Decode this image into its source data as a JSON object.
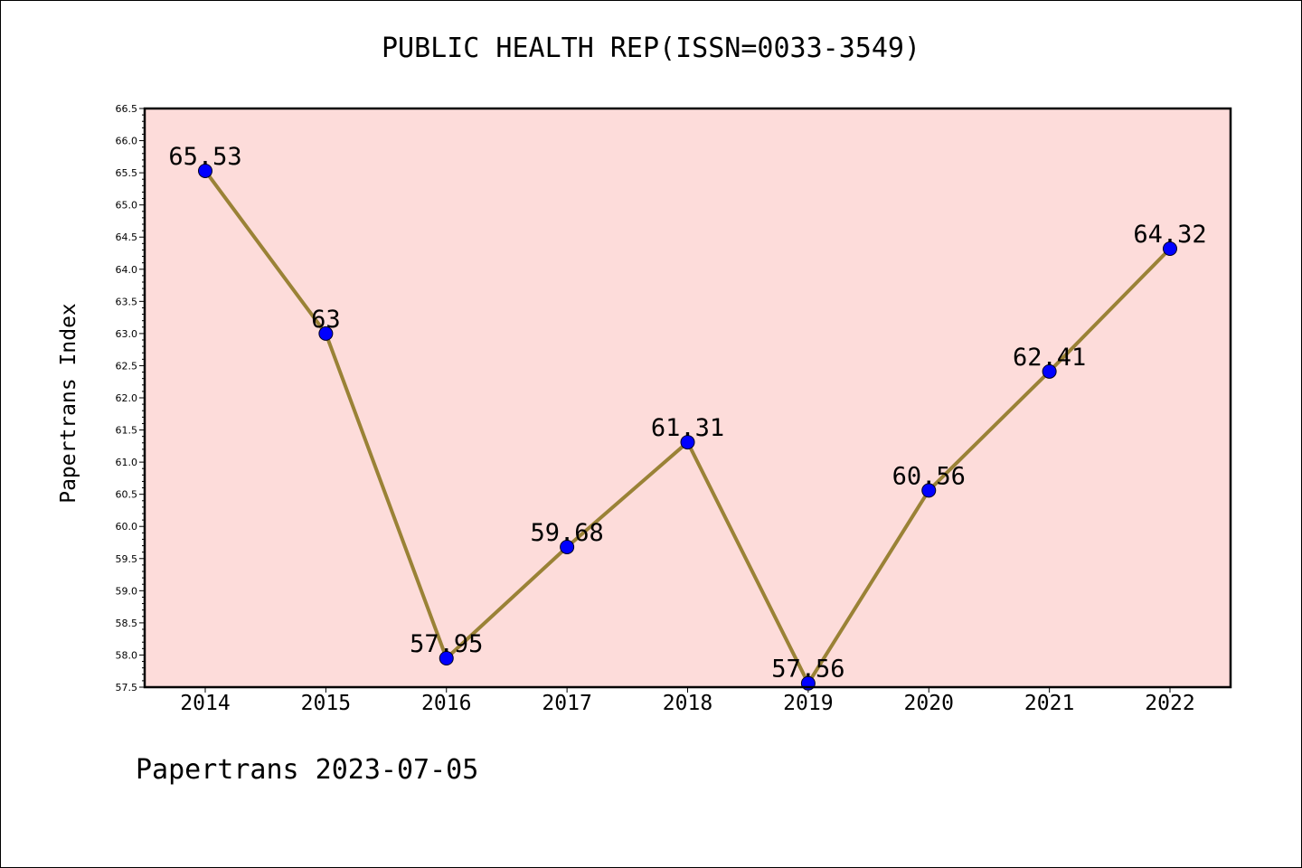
{
  "chart_data": {
    "type": "line",
    "title": "PUBLIC HEALTH REP(ISSN=0033-3549)",
    "xlabel": "",
    "ylabel": "Papertrans Index",
    "categories": [
      "2014",
      "2015",
      "2016",
      "2017",
      "2018",
      "2019",
      "2020",
      "2021",
      "2022"
    ],
    "series": [
      {
        "values": [
          65.53,
          63,
          57.95,
          59.68,
          61.31,
          57.56,
          60.56,
          62.41,
          64.32
        ],
        "labels": [
          "65.53",
          "63",
          "57.95",
          "59.68",
          "61.31",
          "57.56",
          "60.56",
          "62.41",
          "64.32"
        ]
      }
    ],
    "ylim": [
      57.5,
      66.5
    ],
    "yticks": [
      "57.5",
      "58.0",
      "58.5",
      "59.0",
      "59.5",
      "60.0",
      "60.5",
      "61.0",
      "61.5",
      "62.0",
      "62.5",
      "63.0",
      "63.5",
      "64.0",
      "64.5",
      "65.0",
      "65.5",
      "66.0",
      "66.5"
    ],
    "grid": false,
    "background_color": "#fddcda",
    "line_color": "#9a8236",
    "marker_color": "#0000ff"
  },
  "footer": "Papertrans 2023-07-05"
}
